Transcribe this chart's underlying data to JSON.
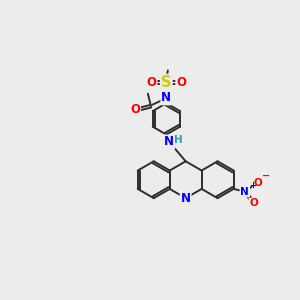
{
  "bg_color": "#ececec",
  "bond_color": "#2d2d2d",
  "bond_lw": 1.4,
  "figsize": [
    3.0,
    3.0
  ],
  "dpi": 100,
  "colors": {
    "N": "#0000ff",
    "O": "#ff0000",
    "S": "#cccc00",
    "H": "#2fa0a0",
    "C": "#2d2d2d"
  },
  "fs": 8.5
}
